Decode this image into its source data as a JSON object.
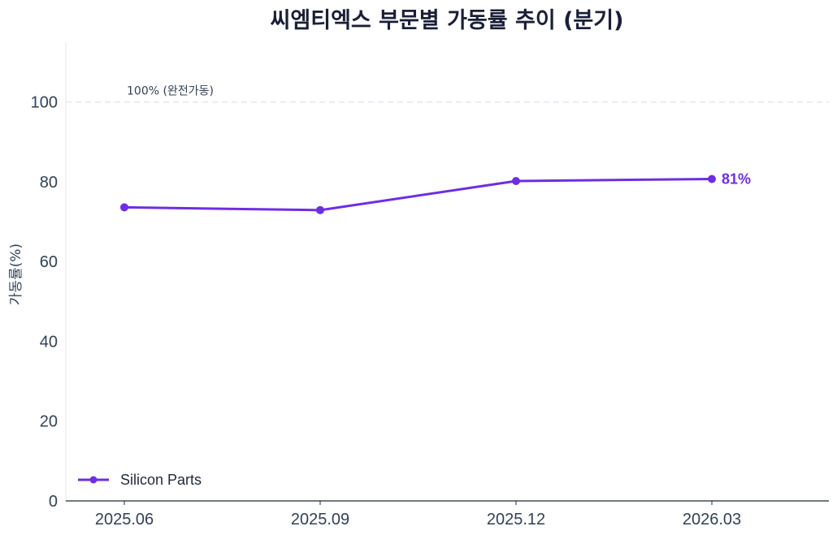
{
  "chart_data": {
    "type": "line",
    "title": "씨엠티엑스 부문별 가동률 추이 (분기)",
    "xlabel": "",
    "ylabel": "가동률(%)",
    "categories": [
      "2025.06",
      "2025.09",
      "2025.12",
      "2026.03"
    ],
    "series": [
      {
        "name": "Silicon Parts",
        "values": [
          73.6,
          72.9,
          80.2,
          80.7
        ],
        "color": "#6d2ee3"
      }
    ],
    "ylim": [
      0,
      115
    ],
    "yticks": [
      0,
      20,
      40,
      60,
      80,
      100
    ],
    "reference_line": {
      "value": 100,
      "label": "100% (완전가동)",
      "color": "#e2e8f0"
    },
    "end_label": "81%",
    "grid": false,
    "legend": "bottom-left"
  }
}
